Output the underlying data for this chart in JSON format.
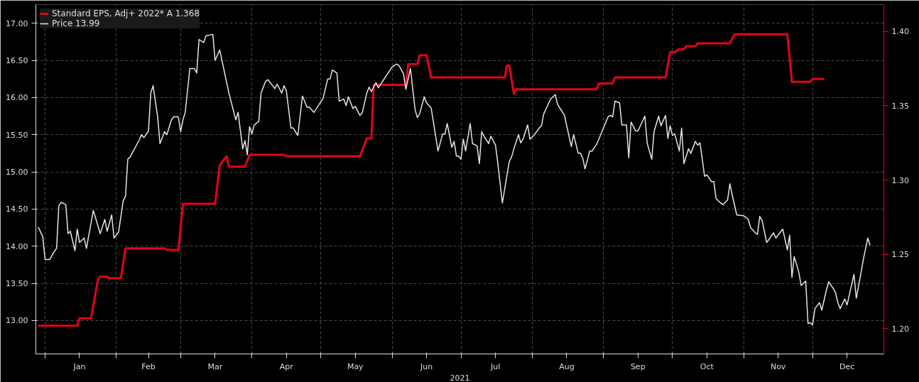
{
  "chart_data": {
    "type": "line",
    "xlabel": "2021",
    "xlim": [
      "2020-12-28",
      "2022-01-01"
    ],
    "xticks": [
      {
        "value": "2021-01-01",
        "label": null
      },
      {
        "value": "2021-01-16",
        "label": "Jan"
      },
      {
        "value": "2021-02-01",
        "label": null
      },
      {
        "value": "2021-02-15",
        "label": "Feb"
      },
      {
        "value": "2021-03-01",
        "label": null
      },
      {
        "value": "2021-03-16",
        "label": "Mar"
      },
      {
        "value": "2021-04-01",
        "label": null
      },
      {
        "value": "2021-04-16",
        "label": "Apr"
      },
      {
        "value": "2021-05-01",
        "label": null
      },
      {
        "value": "2021-05-16",
        "label": "May"
      },
      {
        "value": "2021-06-01",
        "label": null
      },
      {
        "value": "2021-06-16",
        "label": "Jun"
      },
      {
        "value": "2021-07-01",
        "label": null
      },
      {
        "value": "2021-07-16",
        "label": "Jul"
      },
      {
        "value": "2021-08-01",
        "label": null
      },
      {
        "value": "2021-08-16",
        "label": "Aug"
      },
      {
        "value": "2021-09-01",
        "label": null
      },
      {
        "value": "2021-09-16",
        "label": "Sep"
      },
      {
        "value": "2021-10-01",
        "label": null
      },
      {
        "value": "2021-10-16",
        "label": "Oct"
      },
      {
        "value": "2021-11-01",
        "label": null
      },
      {
        "value": "2021-11-16",
        "label": "Nov"
      },
      {
        "value": "2021-12-01",
        "label": null
      },
      {
        "value": "2021-12-16",
        "label": "Dec"
      }
    ],
    "ylim": [
      12.55,
      17.25
    ],
    "yticks": [
      {
        "value": 13,
        "label": "13.00"
      },
      {
        "value": 13.5,
        "label": "13.50"
      },
      {
        "value": 14,
        "label": "14.00"
      },
      {
        "value": 14.5,
        "label": "14.50"
      },
      {
        "value": 15,
        "label": "15.00"
      },
      {
        "value": 15.5,
        "label": "15.50"
      },
      {
        "value": 16,
        "label": "16.00"
      },
      {
        "value": 16.5,
        "label": "16.50"
      },
      {
        "value": 17,
        "label": "17.00"
      }
    ],
    "y2lim": [
      1.183,
      1.418
    ],
    "y2ticks": [
      {
        "value": 1.2,
        "label": "1.20"
      },
      {
        "value": 1.25,
        "label": "1.25"
      },
      {
        "value": 1.3,
        "label": "1.30"
      },
      {
        "value": 1.35,
        "label": "1.35"
      },
      {
        "value": 1.4,
        "label": "1.40"
      }
    ],
    "grid": true,
    "legend": "top left",
    "series": [
      {
        "name": "Standard EPS, Adj+ 2022* A 1.368",
        "color": "#e8001c",
        "axis": "y2",
        "x": [
          "2020-12-29",
          "2021-01-15",
          "2021-01-16",
          "2021-01-21",
          "2021-01-24",
          "2021-01-25",
          "2021-01-28",
          "2021-01-29",
          "2021-02-03",
          "2021-02-05",
          "2021-02-22",
          "2021-02-23",
          "2021-02-28",
          "2021-03-02",
          "2021-03-16",
          "2021-03-18",
          "2021-03-21",
          "2021-03-22",
          "2021-03-29",
          "2021-03-31",
          "2021-04-15",
          "2021-04-16",
          "2021-05-18",
          "2021-05-21",
          "2021-05-23",
          "2021-05-24",
          "2021-06-07",
          "2021-06-08",
          "2021-06-12",
          "2021-06-13",
          "2021-06-16",
          "2021-06-18",
          "2021-07-20",
          "2021-07-21",
          "2021-07-22",
          "2021-07-24",
          "2021-07-25",
          "2021-08-29",
          "2021-08-30",
          "2021-09-05",
          "2021-09-06",
          "2021-09-28",
          "2021-09-30",
          "2021-10-02",
          "2021-10-04",
          "2021-10-06",
          "2021-10-07",
          "2021-10-11",
          "2021-10-12",
          "2021-10-26",
          "2021-10-28",
          "2021-11-20",
          "2021-11-22",
          "2021-11-30",
          "2021-12-01",
          "2021-12-06"
        ],
        "values": [
          1.202,
          1.202,
          1.207,
          1.207,
          1.233,
          1.235,
          1.235,
          1.234,
          1.234,
          1.254,
          1.254,
          1.253,
          1.253,
          1.284,
          1.284,
          1.31,
          1.316,
          1.309,
          1.309,
          1.317,
          1.317,
          1.316,
          1.316,
          1.328,
          1.328,
          1.364,
          1.364,
          1.378,
          1.378,
          1.384,
          1.384,
          1.369,
          1.369,
          1.377,
          1.377,
          1.358,
          1.361,
          1.361,
          1.365,
          1.365,
          1.369,
          1.369,
          1.386,
          1.386,
          1.388,
          1.388,
          1.39,
          1.39,
          1.392,
          1.392,
          1.398,
          1.398,
          1.366,
          1.366,
          1.368,
          1.368
        ]
      },
      {
        "name": "Price 13.99",
        "color": "#e6e6e6",
        "x": [
          "2020-12-29",
          "2020-12-31",
          "2021-01-01",
          "2021-01-03",
          "2021-01-05",
          "2021-01-06",
          "2021-01-07",
          "2021-01-08",
          "2021-01-10",
          "2021-01-11",
          "2021-01-12",
          "2021-01-14",
          "2021-01-15",
          "2021-01-16",
          "2021-01-18",
          "2021-01-19",
          "2021-01-22",
          "2021-01-23",
          "2021-01-25",
          "2021-01-27",
          "2021-01-28",
          "2021-01-30",
          "2021-01-31",
          "2021-02-02",
          "2021-02-04",
          "2021-02-05",
          "2021-02-06",
          "2021-02-07",
          "2021-02-11",
          "2021-02-12",
          "2021-02-13",
          "2021-02-15",
          "2021-02-16",
          "2021-02-17",
          "2021-02-19",
          "2021-02-20",
          "2021-02-22",
          "2021-02-23",
          "2021-02-25",
          "2021-02-26",
          "2021-02-28",
          "2021-03-01",
          "2021-03-02",
          "2021-03-03",
          "2021-03-05",
          "2021-03-07",
          "2021-03-08",
          "2021-03-09",
          "2021-03-11",
          "2021-03-12",
          "2021-03-15",
          "2021-03-16",
          "2021-03-18",
          "2021-03-20",
          "2021-03-22",
          "2021-03-25",
          "2021-03-26",
          "2021-03-28",
          "2021-03-29",
          "2021-03-30",
          "2021-03-31",
          "2021-04-01",
          "2021-04-02",
          "2021-04-04",
          "2021-04-05",
          "2021-04-07",
          "2021-04-08",
          "2021-04-10",
          "2021-04-11",
          "2021-04-12",
          "2021-04-14",
          "2021-04-15",
          "2021-04-16",
          "2021-04-18",
          "2021-04-19",
          "2021-04-21",
          "2021-04-23",
          "2021-04-25",
          "2021-04-26",
          "2021-04-28",
          "2021-05-02",
          "2021-05-04",
          "2021-05-05",
          "2021-05-06",
          "2021-05-08",
          "2021-05-09",
          "2021-05-11",
          "2021-05-12",
          "2021-05-13",
          "2021-05-15",
          "2021-05-16",
          "2021-05-18",
          "2021-05-19",
          "2021-05-21",
          "2021-05-22",
          "2021-05-23",
          "2021-05-25",
          "2021-05-26",
          "2021-06-01",
          "2021-06-03",
          "2021-06-04",
          "2021-06-06",
          "2021-06-07",
          "2021-06-09",
          "2021-06-11",
          "2021-06-12",
          "2021-06-13",
          "2021-06-15",
          "2021-06-16",
          "2021-06-18",
          "2021-06-21",
          "2021-06-23",
          "2021-06-24",
          "2021-06-25",
          "2021-06-27",
          "2021-06-28",
          "2021-06-29",
          "2021-06-30",
          "2021-07-01",
          "2021-07-02",
          "2021-07-03",
          "2021-07-05",
          "2021-07-06",
          "2021-07-08",
          "2021-07-09",
          "2021-07-10",
          "2021-07-11",
          "2021-07-13",
          "2021-07-14",
          "2021-07-16",
          "2021-07-17",
          "2021-07-19",
          "2021-07-22",
          "2021-07-23",
          "2021-07-24",
          "2021-07-26",
          "2021-07-27",
          "2021-07-28",
          "2021-07-30",
          "2021-07-31",
          "2021-08-02",
          "2021-08-04",
          "2021-08-05",
          "2021-08-06",
          "2021-08-09",
          "2021-08-11",
          "2021-08-12",
          "2021-08-13",
          "2021-08-15",
          "2021-08-18",
          "2021-08-19",
          "2021-08-21",
          "2021-08-22",
          "2021-08-23",
          "2021-08-24",
          "2021-08-26",
          "2021-08-27",
          "2021-08-29",
          "2021-08-30",
          "2021-09-03",
          "2021-09-04",
          "2021-09-05",
          "2021-09-06",
          "2021-09-08",
          "2021-09-09",
          "2021-09-11",
          "2021-09-12",
          "2021-09-13",
          "2021-09-15",
          "2021-09-16",
          "2021-09-19",
          "2021-09-20",
          "2021-09-22",
          "2021-09-23",
          "2021-09-25",
          "2021-09-26",
          "2021-09-28",
          "2021-09-29",
          "2021-09-30",
          "2021-10-01",
          "2021-10-02",
          "2021-10-04",
          "2021-10-05",
          "2021-10-06",
          "2021-10-08",
          "2021-10-09",
          "2021-10-11",
          "2021-10-12",
          "2021-10-13",
          "2021-10-15",
          "2021-10-16",
          "2021-10-18",
          "2021-10-19",
          "2021-10-20",
          "2021-10-22",
          "2021-10-23",
          "2021-10-25",
          "2021-10-26",
          "2021-10-27",
          "2021-10-29",
          "2021-11-01",
          "2021-11-03",
          "2021-11-04",
          "2021-11-06",
          "2021-11-07",
          "2021-11-08",
          "2021-11-09",
          "2021-11-11",
          "2021-11-12",
          "2021-11-14",
          "2021-11-15",
          "2021-11-17",
          "2021-11-18",
          "2021-11-20",
          "2021-11-21",
          "2021-11-22",
          "2021-11-23",
          "2021-11-25",
          "2021-11-26",
          "2021-11-28",
          "2021-11-29",
          "2021-11-30",
          "2021-12-01",
          "2021-12-02",
          "2021-12-04",
          "2021-12-05",
          "2021-12-07",
          "2021-12-08",
          "2021-12-10",
          "2021-12-11",
          "2021-12-12",
          "2021-12-13",
          "2021-12-15",
          "2021-12-16",
          "2021-12-19",
          "2021-12-20",
          "2021-12-22",
          "2021-12-23",
          "2021-12-25",
          "2021-12-26"
        ],
        "values": [
          14.26,
          14.13,
          13.82,
          13.82,
          13.93,
          13.97,
          14.54,
          14.59,
          14.56,
          14.17,
          14.2,
          13.94,
          14.23,
          14.05,
          14.11,
          13.97,
          14.48,
          14.38,
          14.17,
          14.36,
          14.2,
          14.42,
          14.11,
          14.19,
          14.61,
          14.67,
          15.17,
          15.2,
          15.43,
          15.5,
          15.46,
          15.55,
          16.06,
          16.16,
          15.74,
          15.38,
          15.54,
          15.5,
          15.7,
          15.74,
          15.74,
          15.54,
          15.7,
          15.8,
          16.39,
          16.39,
          16.33,
          16.78,
          16.74,
          16.83,
          16.85,
          16.5,
          16.64,
          16.35,
          16.06,
          15.7,
          15.8,
          15.31,
          15.42,
          15.23,
          15.61,
          15.51,
          15.63,
          15.68,
          16.06,
          16.22,
          16.24,
          16.16,
          16.12,
          16.18,
          16.06,
          16.16,
          16.09,
          15.59,
          15.59,
          15.49,
          16.02,
          15.87,
          15.87,
          15.8,
          15.99,
          16.25,
          16.25,
          16.37,
          16.33,
          15.95,
          15.98,
          15.89,
          16.01,
          15.85,
          15.88,
          15.76,
          15.79,
          16.06,
          16.14,
          16.08,
          16.2,
          16.13,
          16.41,
          16.45,
          16.43,
          16.32,
          16.11,
          16.39,
          15.84,
          15.73,
          15.78,
          16.01,
          15.93,
          15.86,
          15.28,
          15.51,
          15.51,
          15.65,
          15.33,
          15.41,
          15.21,
          15.21,
          15.17,
          15.44,
          15.28,
          15.65,
          15.38,
          15.35,
          15.11,
          15.54,
          15.48,
          15.38,
          15.48,
          15.36,
          15.12,
          14.58,
          15.14,
          15.2,
          15.31,
          15.5,
          15.39,
          15.44,
          15.63,
          15.44,
          15.5,
          15.59,
          15.62,
          15.78,
          15.98,
          16.04,
          15.91,
          15.86,
          15.76,
          15.34,
          15.5,
          15.25,
          15.25,
          15.18,
          15.04,
          15.28,
          15.28,
          15.37,
          15.44,
          15.74,
          15.76,
          15.74,
          15.95,
          15.93,
          15.63,
          15.63,
          15.19,
          15.67,
          15.55,
          15.55,
          15.75,
          15.39,
          15.17,
          15.54,
          15.75,
          15.62,
          15.76,
          15.45,
          15.62,
          15.49,
          15.51,
          15.28,
          15.59,
          15.11,
          15.31,
          15.25,
          15.41,
          15.36,
          15.39,
          14.94,
          14.96,
          14.87,
          14.87,
          14.64,
          14.58,
          14.56,
          14.62,
          14.84,
          14.69,
          14.42,
          14.41,
          14.36,
          14.25,
          14.18,
          14.16,
          14.4,
          14.35,
          14.05,
          14.09,
          14.18,
          14.11,
          14.19,
          14.23,
          13.95,
          14.15,
          13.58,
          13.86,
          13.65,
          13.47,
          13.53,
          12.96,
          12.97,
          12.94,
          13.16,
          13.24,
          13.14,
          13.41,
          13.52,
          13.43,
          13.37,
          13.24,
          13.16,
          13.29,
          13.21,
          13.62,
          13.3,
          13.63,
          13.81,
          14.11,
          14.01
        ]
      }
    ]
  }
}
